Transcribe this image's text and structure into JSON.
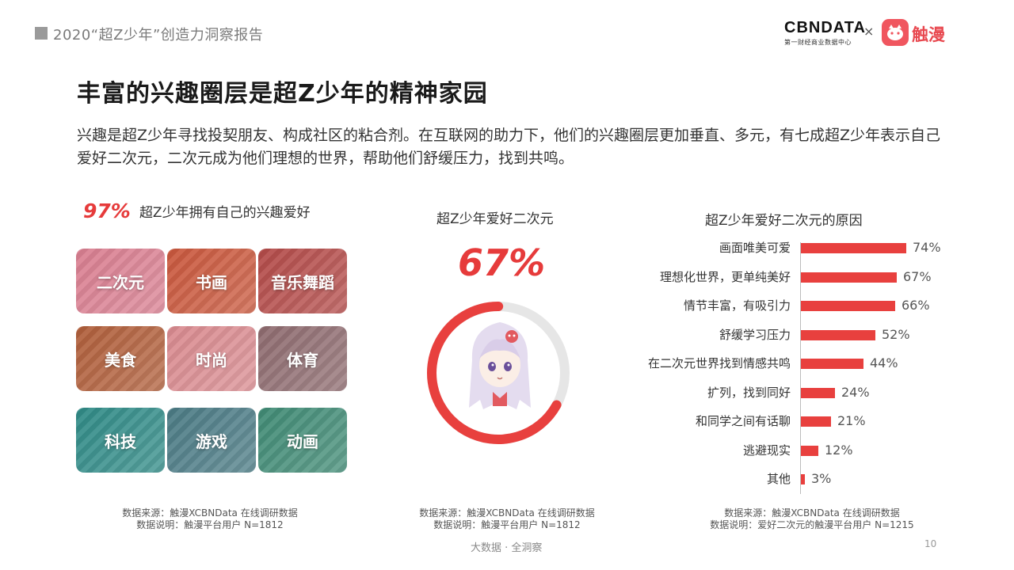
{
  "header": {
    "report_title": "2020“超Z少年”创造力洞察报告",
    "logo_cbn": "CBNDATA",
    "logo_cbn_sub": "第一财经商业数据中心",
    "logo_x": "×",
    "logo_chuman": "触漫"
  },
  "slide": {
    "title": "丰富的兴趣圈层是超Z少年的精神家园",
    "intro": "兴趣是超Z少年寻找投契朋友、构成社区的粘合剂。在互联网的助力下，他们的兴趣圈层更加垂直、多元，有七成超Z少年表示自己爱好二次元，二次元成为他们理想的世界，帮助他们舒缓压力，找到共鸣。"
  },
  "left_panel": {
    "stat": "97%",
    "label": "超Z少年拥有自己的兴趣爱好",
    "tiles": [
      {
        "label": "二次元",
        "color": "#d97e90"
      },
      {
        "label": "书画",
        "color": "#c9573c"
      },
      {
        "label": "音乐舞蹈",
        "color": "#b34a48"
      },
      {
        "label": "美食",
        "color": "#b05e3a"
      },
      {
        "label": "时尚",
        "color": "#d98a8f"
      },
      {
        "label": "体育",
        "color": "#8e6b6f"
      },
      {
        "label": "科技",
        "color": "#2f8a86"
      },
      {
        "label": "游戏",
        "color": "#4a7a84"
      },
      {
        "label": "动画",
        "color": "#3f8a74"
      }
    ],
    "source_line1": "数据来源：触漫XCBNData 在线调研数据",
    "source_line2": "数据说明：触漫平台用户 N=1812"
  },
  "mid_panel": {
    "title": "超Z少年爱好二次元",
    "stat": "67%",
    "percent": 67,
    "ring_color": "#e8403e",
    "track_color": "#e6e6e6",
    "source_line1": "数据来源：触漫XCBNData 在线调研数据",
    "source_line2": "数据说明：触漫平台用户 N=1812"
  },
  "right_panel": {
    "title": "超Z少年爱好二次元的原因",
    "source_line1": "数据来源：触漫XCBNData 在线调研数据",
    "source_line2": "数据说明：爱好二次元的触漫平台用户 N=1215"
  },
  "chart_data": {
    "type": "bar",
    "orientation": "horizontal",
    "title": "超Z少年爱好二次元的原因",
    "categories": [
      "画面唯美可爱",
      "理想化世界，更单纯美好",
      "情节丰富，有吸引力",
      "舒缓学习压力",
      "在二次元世界找到情感共鸣",
      "扩列，找到同好",
      "和同学之间有话聊",
      "逃避现实",
      "其他"
    ],
    "values": [
      74,
      67,
      66,
      52,
      44,
      24,
      21,
      12,
      3
    ],
    "value_labels": [
      "74%",
      "67%",
      "66%",
      "52%",
      "44%",
      "24%",
      "21%",
      "12%",
      "3%"
    ],
    "unit": "%",
    "xlim": [
      0,
      100
    ],
    "color": "#e8403e"
  },
  "footer": {
    "text": "大数据 · 全洞察",
    "page_number": "10"
  }
}
